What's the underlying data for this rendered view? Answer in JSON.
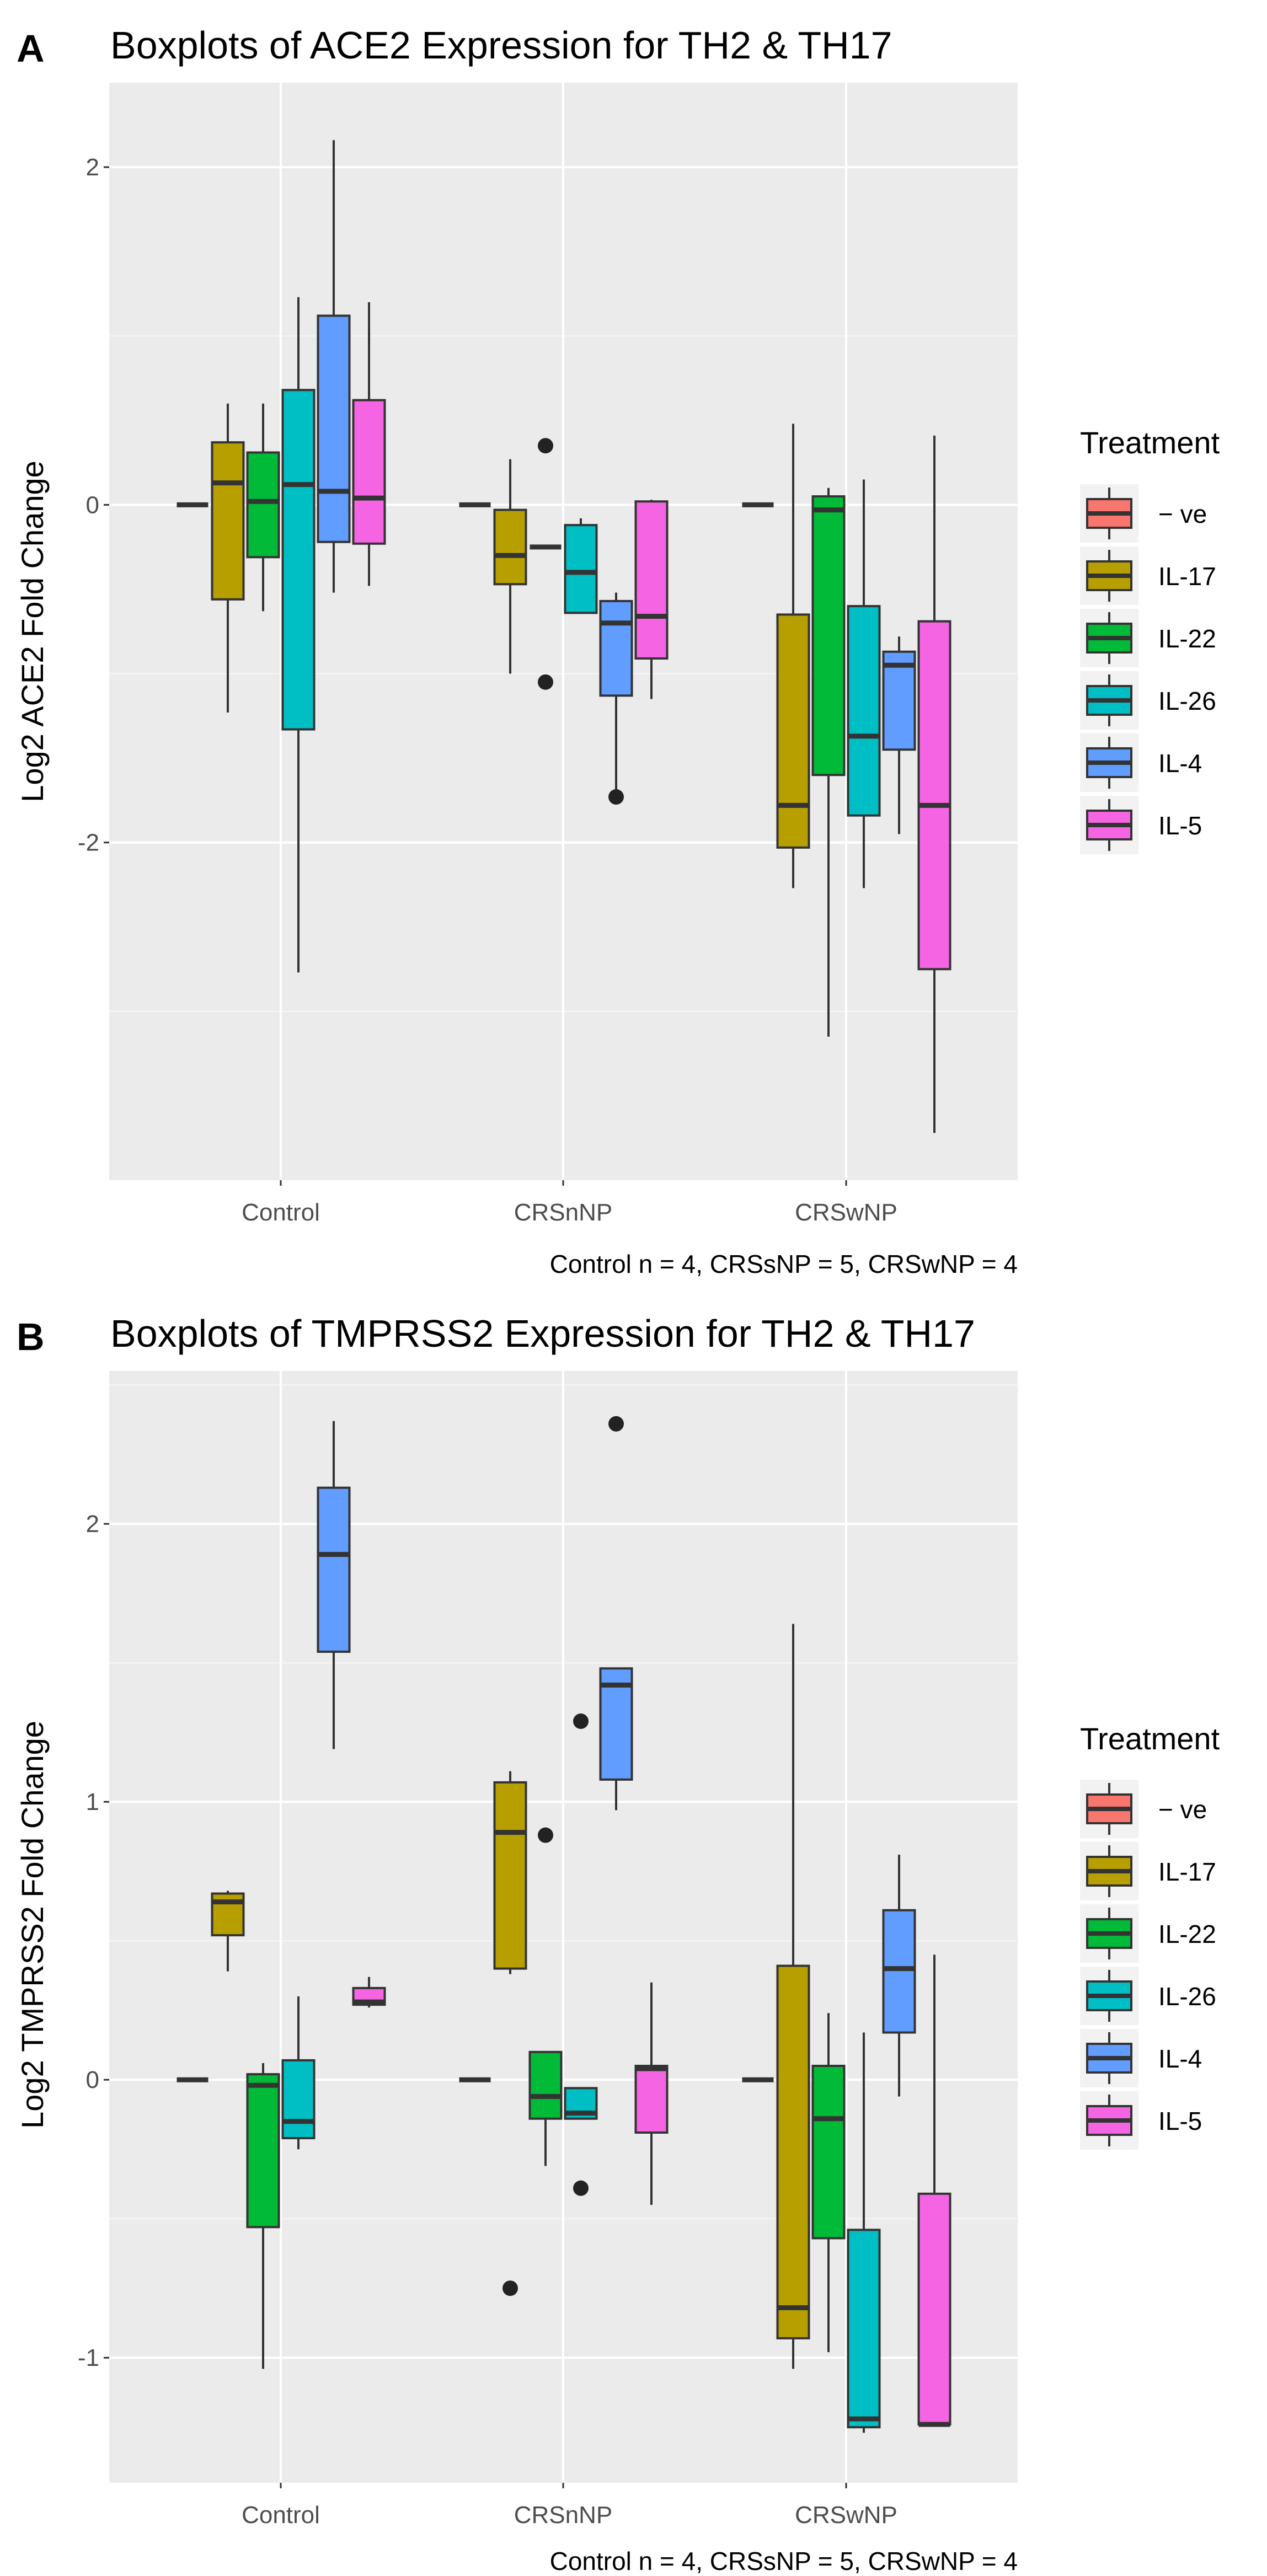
{
  "legend_items": [
    {
      "label": "− ve",
      "color": "#F8766D"
    },
    {
      "label": "IL-17",
      "color": "#B79F00"
    },
    {
      "label": "IL-22",
      "color": "#00BA38"
    },
    {
      "label": "IL-26",
      "color": "#00BFC4"
    },
    {
      "label": "IL-4",
      "color": "#619CFF"
    },
    {
      "label": "IL-5",
      "color": "#F564E3"
    }
  ],
  "chart_data": [
    {
      "type": "boxplot",
      "panel_label": "A",
      "title": "Boxplots of ACE2 Expression for TH2 & TH17",
      "ylabel": "Log2 ACE2 Fold Change",
      "caption": "Control n = 4, CRSsNP = 5, CRSwNP = 4",
      "legend_title": "Treatment",
      "categories": [
        "Control",
        "CRSnNP",
        "CRSwNP"
      ],
      "ylim": [
        -4.0,
        2.5
      ],
      "yticks": [
        -2,
        0,
        2
      ],
      "ytick_labels": [
        "-2",
        "0",
        "2"
      ],
      "series": [
        {
          "name": "− ve",
          "boxes": [
            {
              "min": 0,
              "q1": 0,
              "median": 0,
              "q3": 0,
              "max": 0,
              "outliers": []
            },
            {
              "min": 0,
              "q1": 0,
              "median": 0,
              "q3": 0,
              "max": 0,
              "outliers": []
            },
            {
              "min": 0,
              "q1": 0,
              "median": 0,
              "q3": 0,
              "max": 0,
              "outliers": []
            }
          ]
        },
        {
          "name": "IL-17",
          "boxes": [
            {
              "min": -1.23,
              "q1": -0.56,
              "median": 0.13,
              "q3": 0.37,
              "max": 0.6,
              "outliers": []
            },
            {
              "min": -1.0,
              "q1": -0.47,
              "median": -0.3,
              "q3": -0.03,
              "max": 0.27,
              "outliers": []
            },
            {
              "min": -2.27,
              "q1": -2.03,
              "median": -1.78,
              "q3": -0.65,
              "max": 0.48,
              "outliers": []
            }
          ]
        },
        {
          "name": "IL-22",
          "boxes": [
            {
              "min": -0.63,
              "q1": -0.31,
              "median": 0.02,
              "q3": 0.31,
              "max": 0.6,
              "outliers": []
            },
            {
              "min": -0.25,
              "q1": -0.25,
              "median": -0.25,
              "q3": -0.25,
              "max": -0.25,
              "outliers": [
                0.35,
                -1.05
              ]
            },
            {
              "min": -3.15,
              "q1": -1.6,
              "median": -0.03,
              "q3": 0.05,
              "max": 0.1,
              "outliers": []
            }
          ]
        },
        {
          "name": "IL-26",
          "boxes": [
            {
              "min": -2.77,
              "q1": -1.33,
              "median": 0.12,
              "q3": 0.68,
              "max": 1.23,
              "outliers": []
            },
            {
              "min": -0.64,
              "q1": -0.64,
              "median": -0.4,
              "q3": -0.12,
              "max": -0.08,
              "outliers": []
            },
            {
              "min": -2.27,
              "q1": -1.84,
              "median": -1.37,
              "q3": -0.6,
              "max": 0.15,
              "outliers": []
            }
          ]
        },
        {
          "name": "IL-4",
          "boxes": [
            {
              "min": -0.52,
              "q1": -0.22,
              "median": 0.08,
              "q3": 1.12,
              "max": 2.16,
              "outliers": []
            },
            {
              "min": -1.73,
              "q1": -1.13,
              "median": -0.7,
              "q3": -0.57,
              "max": -0.52,
              "outliers": [
                -1.73
              ]
            },
            {
              "min": -1.95,
              "q1": -1.45,
              "median": -0.95,
              "q3": -0.87,
              "max": -0.78,
              "outliers": []
            }
          ]
        },
        {
          "name": "IL-5",
          "boxes": [
            {
              "min": -0.48,
              "q1": -0.23,
              "median": 0.04,
              "q3": 0.62,
              "max": 1.2,
              "outliers": []
            },
            {
              "min": -1.15,
              "q1": -0.91,
              "median": -0.66,
              "q3": 0.02,
              "max": 0.03,
              "outliers": []
            },
            {
              "min": -3.72,
              "q1": -2.75,
              "median": -1.78,
              "q3": -0.69,
              "max": 0.41,
              "outliers": []
            }
          ]
        }
      ]
    },
    {
      "type": "boxplot",
      "panel_label": "B",
      "title": "Boxplots of TMPRSS2 Expression for TH2 & TH17",
      "ylabel": "Log2 TMPRSS2 Fold Change",
      "caption": "Control n = 4, CRSsNP = 5, CRSwNP = 4",
      "legend_title": "Treatment",
      "categories": [
        "Control",
        "CRSnNP",
        "CRSwNP"
      ],
      "ylim": [
        -1.45,
        2.55
      ],
      "yticks": [
        -1,
        0,
        1,
        2
      ],
      "ytick_labels": [
        "-1",
        "0",
        "1",
        "2"
      ],
      "series": [
        {
          "name": "− ve",
          "boxes": [
            {
              "min": 0,
              "q1": 0,
              "median": 0,
              "q3": 0,
              "max": 0,
              "outliers": []
            },
            {
              "min": 0,
              "q1": 0,
              "median": 0,
              "q3": 0,
              "max": 0,
              "outliers": []
            },
            {
              "min": 0,
              "q1": 0,
              "median": 0,
              "q3": 0,
              "max": 0,
              "outliers": []
            }
          ]
        },
        {
          "name": "IL-17",
          "boxes": [
            {
              "min": 0.39,
              "q1": 0.52,
              "median": 0.64,
              "q3": 0.67,
              "max": 0.68,
              "outliers": []
            },
            {
              "min": 0.38,
              "q1": 0.4,
              "median": 0.89,
              "q3": 1.07,
              "max": 1.11,
              "outliers": [
                -0.75
              ]
            },
            {
              "min": -1.04,
              "q1": -0.93,
              "median": -0.82,
              "q3": 0.41,
              "max": 1.64,
              "outliers": []
            }
          ]
        },
        {
          "name": "IL-22",
          "boxes": [
            {
              "min": -1.04,
              "q1": -0.53,
              "median": -0.02,
              "q3": 0.02,
              "max": 0.06,
              "outliers": []
            },
            {
              "min": -0.31,
              "q1": -0.14,
              "median": -0.06,
              "q3": 0.1,
              "max": 0.1,
              "outliers": [
                0.88
              ]
            },
            {
              "min": -0.98,
              "q1": -0.57,
              "median": -0.14,
              "q3": 0.05,
              "max": 0.24,
              "outliers": []
            }
          ]
        },
        {
          "name": "IL-26",
          "boxes": [
            {
              "min": -0.25,
              "q1": -0.21,
              "median": -0.15,
              "q3": 0.07,
              "max": 0.3,
              "outliers": []
            },
            {
              "min": -0.14,
              "q1": -0.14,
              "median": -0.12,
              "q3": -0.03,
              "max": -0.03,
              "outliers": [
                1.29,
                -0.39
              ]
            },
            {
              "min": -1.27,
              "q1": -1.25,
              "median": -1.22,
              "q3": -0.54,
              "max": 0.17,
              "outliers": []
            }
          ]
        },
        {
          "name": "IL-4",
          "boxes": [
            {
              "min": 1.19,
              "q1": 1.54,
              "median": 1.89,
              "q3": 2.13,
              "max": 2.37,
              "outliers": []
            },
            {
              "min": 0.97,
              "q1": 1.08,
              "median": 1.42,
              "q3": 1.48,
              "max": 1.48,
              "outliers": [
                2.36
              ]
            },
            {
              "min": -0.06,
              "q1": 0.17,
              "median": 0.4,
              "q3": 0.61,
              "max": 0.81,
              "outliers": []
            }
          ]
        },
        {
          "name": "IL-5",
          "boxes": [
            {
              "min": 0.26,
              "q1": 0.27,
              "median": 0.28,
              "q3": 0.33,
              "max": 0.37,
              "outliers": []
            },
            {
              "min": -0.45,
              "q1": -0.19,
              "median": 0.04,
              "q3": 0.05,
              "max": 0.35,
              "outliers": []
            },
            {
              "min": -1.24,
              "q1": -1.24,
              "median": -1.24,
              "q3": -0.41,
              "max": 0.45,
              "outliers": []
            }
          ]
        }
      ]
    }
  ]
}
